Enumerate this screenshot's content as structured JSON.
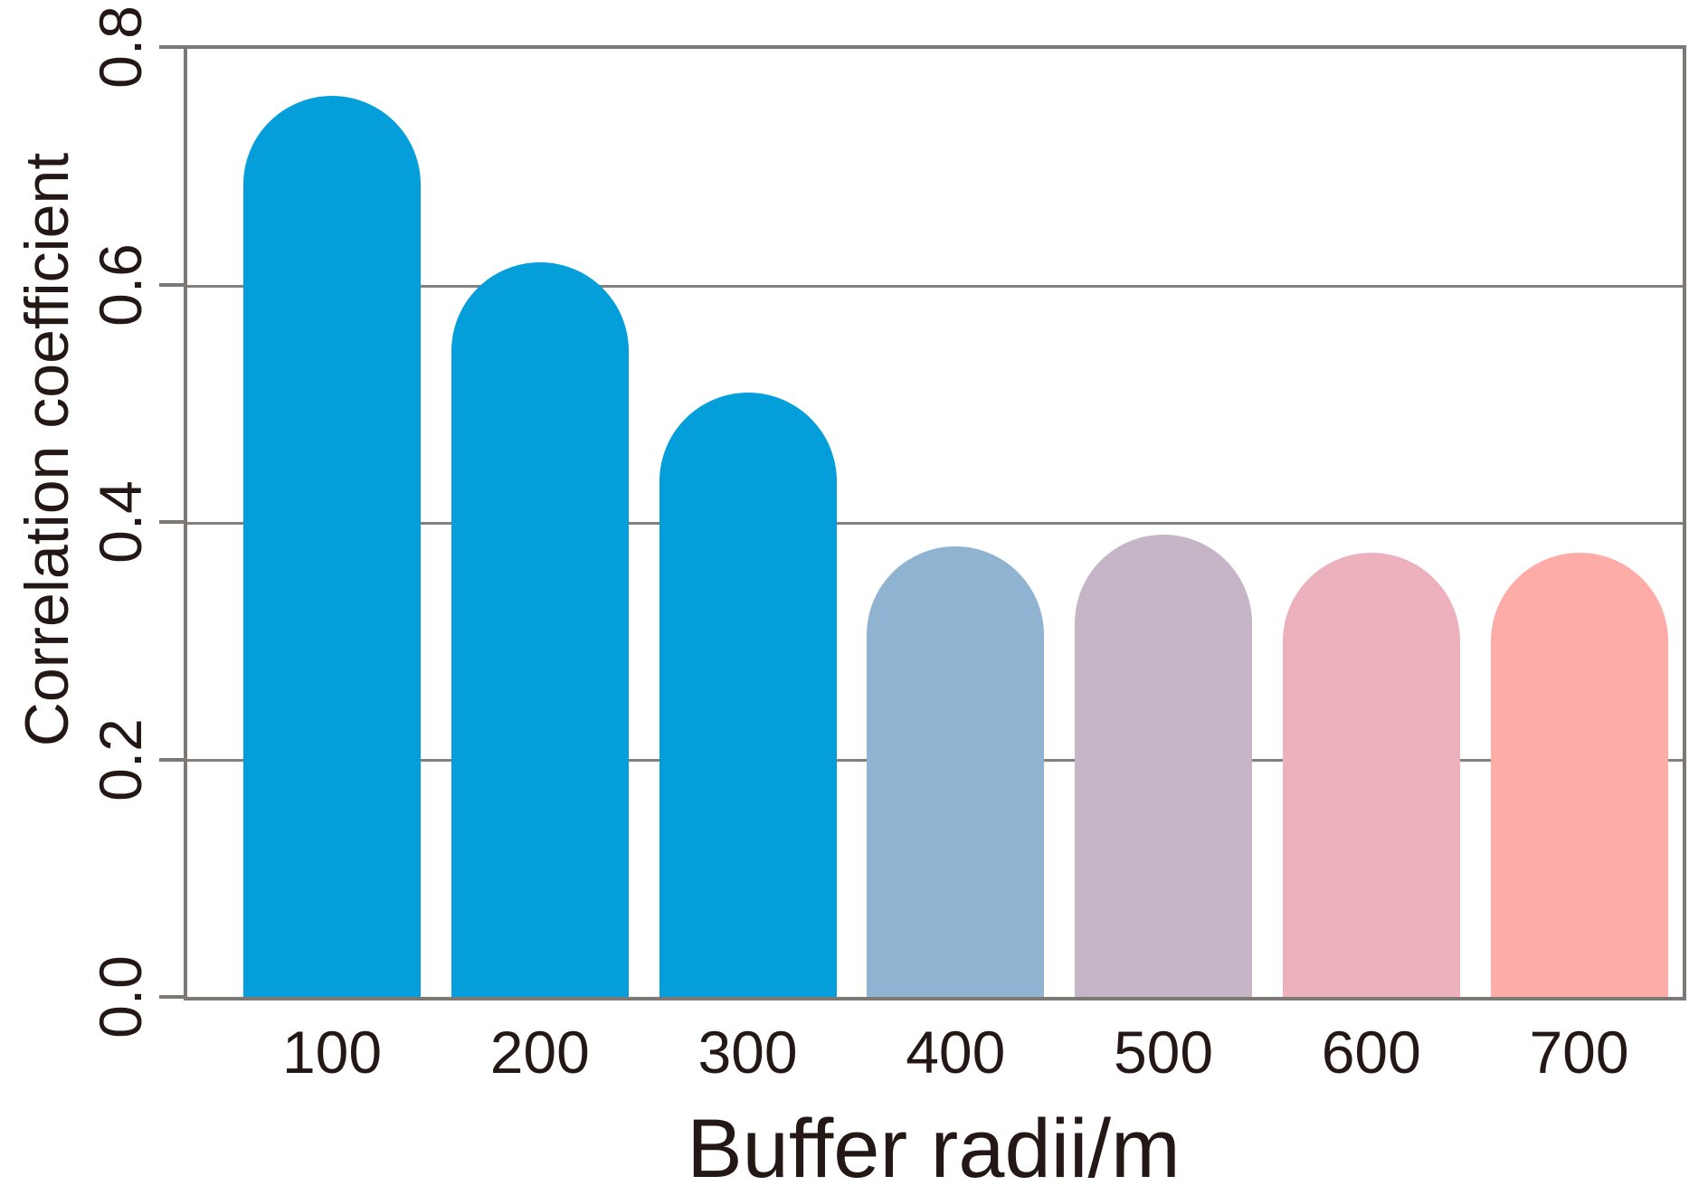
{
  "figure": {
    "background": "#ffffff"
  },
  "chart_data": {
    "type": "bar",
    "title": "",
    "xlabel": "Buffer radii/m",
    "ylabel": "Correlation coefficient",
    "categories": [
      "100",
      "200",
      "300",
      "400",
      "500",
      "600",
      "700"
    ],
    "values": [
      0.76,
      0.62,
      0.51,
      0.38,
      0.39,
      0.375,
      0.375
    ],
    "bar_colors": [
      "#049FDB",
      "#049FDB",
      "#049FDB",
      "#8FB3D1",
      "#C6B5C6",
      "#EDB0BD",
      "#FEACA8"
    ],
    "bar_shape": "rounded-top",
    "ylim": [
      0.0,
      0.8
    ],
    "yticks": [
      "0.0",
      "0.2",
      "0.4",
      "0.6",
      "0.8"
    ],
    "grid": "horizontal gridlines at 0.2, 0.4, 0.6; full box frame",
    "legend": "none",
    "axis_color": "#7D7873",
    "gridline_color": "#85807B",
    "text_color": "#231815"
  }
}
